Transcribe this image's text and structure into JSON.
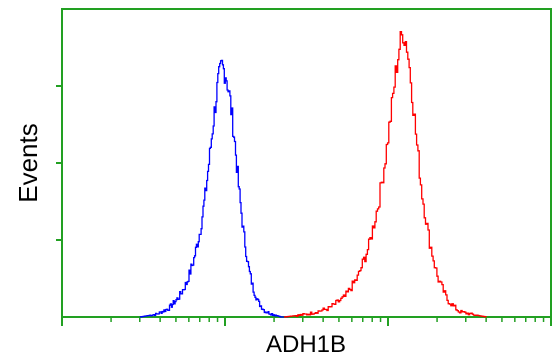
{
  "chart_data": {
    "type": "line",
    "title": "",
    "xlabel": "ADH1B",
    "ylabel": "Events",
    "x_scale": "log",
    "x_tick_labels": [],
    "y_tick_labels": [],
    "grid": false,
    "legend": "none",
    "axis_color": "#22a022",
    "series": [
      {
        "color": "#0000ff",
        "x": [
          30,
          38,
          45,
          52,
          58,
          64,
          70,
          75,
          80,
          85,
          90,
          95,
          101,
          107,
          114,
          121,
          129,
          138,
          148,
          160,
          175,
          195,
          220,
          245
        ],
        "y": [
          0,
          0.01,
          0.03,
          0.07,
          0.12,
          0.2,
          0.3,
          0.42,
          0.56,
          0.7,
          0.82,
          0.88,
          0.85,
          0.76,
          0.62,
          0.45,
          0.3,
          0.18,
          0.1,
          0.05,
          0.02,
          0.01,
          0,
          0
        ]
      },
      {
        "color": "#ff0000",
        "x": [
          230,
          320,
          430,
          540,
          650,
          760,
          870,
          960,
          1040,
          1110,
          1170,
          1230,
          1300,
          1380,
          1480,
          1600,
          1780,
          2000,
          2300,
          2700,
          3200,
          4000
        ],
        "y": [
          0,
          0.01,
          0.03,
          0.07,
          0.14,
          0.25,
          0.4,
          0.56,
          0.72,
          0.86,
          0.95,
          1.0,
          0.95,
          0.82,
          0.63,
          0.44,
          0.27,
          0.14,
          0.06,
          0.02,
          0.01,
          0
        ]
      }
    ]
  }
}
